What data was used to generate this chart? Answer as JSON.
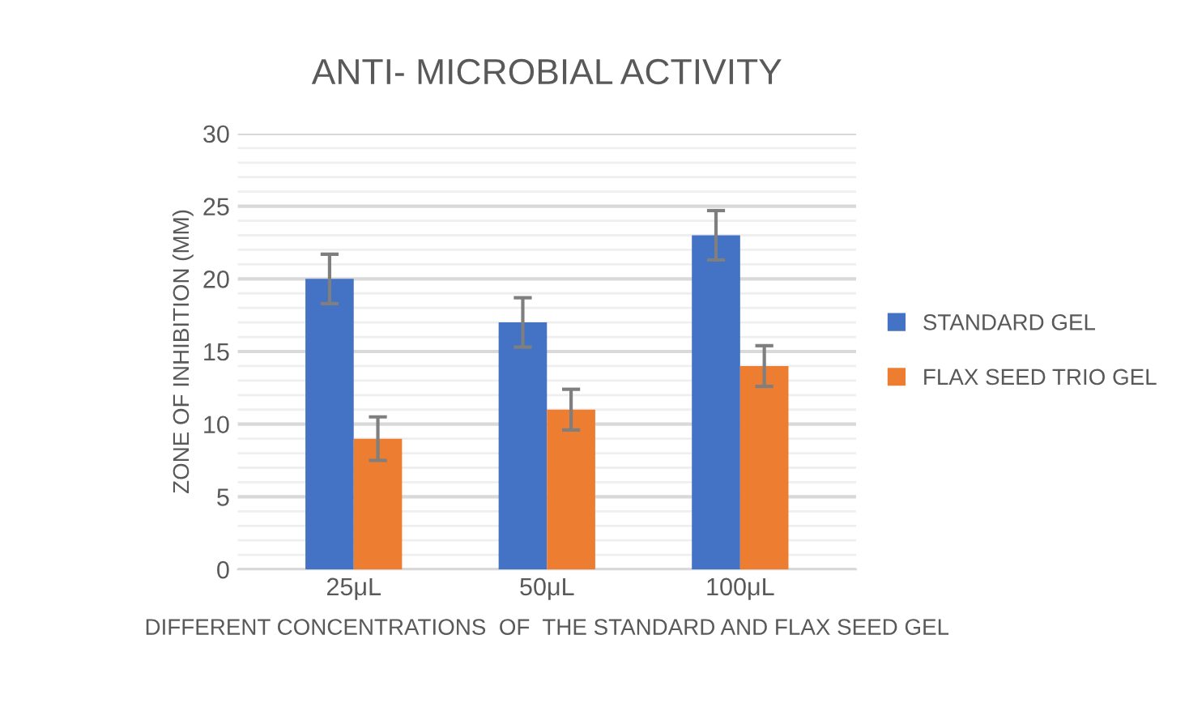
{
  "chart_data": {
    "type": "bar",
    "title": "ANTI- MICROBIAL ACTIVITY",
    "xlabel": "DIFFERENT CONCENTRATIONS  OF  THE STANDARD AND FLAX SEED GEL",
    "ylabel": "ZONE OF INHIBITION (MM)",
    "categories": [
      "25μL",
      "50μL",
      "100μL"
    ],
    "series": [
      {
        "name": "STANDARD GEL",
        "color": "#4472c4",
        "values": [
          20,
          17,
          23
        ],
        "errors": [
          1.7,
          1.7,
          1.7
        ]
      },
      {
        "name": "FLAX SEED TRIO GEL",
        "color": "#ed7d31",
        "values": [
          9,
          11,
          14
        ],
        "errors": [
          1.5,
          1.4,
          1.4
        ]
      }
    ],
    "ylim": [
      0,
      30
    ],
    "yticks": [
      0,
      5,
      10,
      15,
      20,
      25,
      30
    ],
    "grid": "y",
    "legend": "right"
  }
}
